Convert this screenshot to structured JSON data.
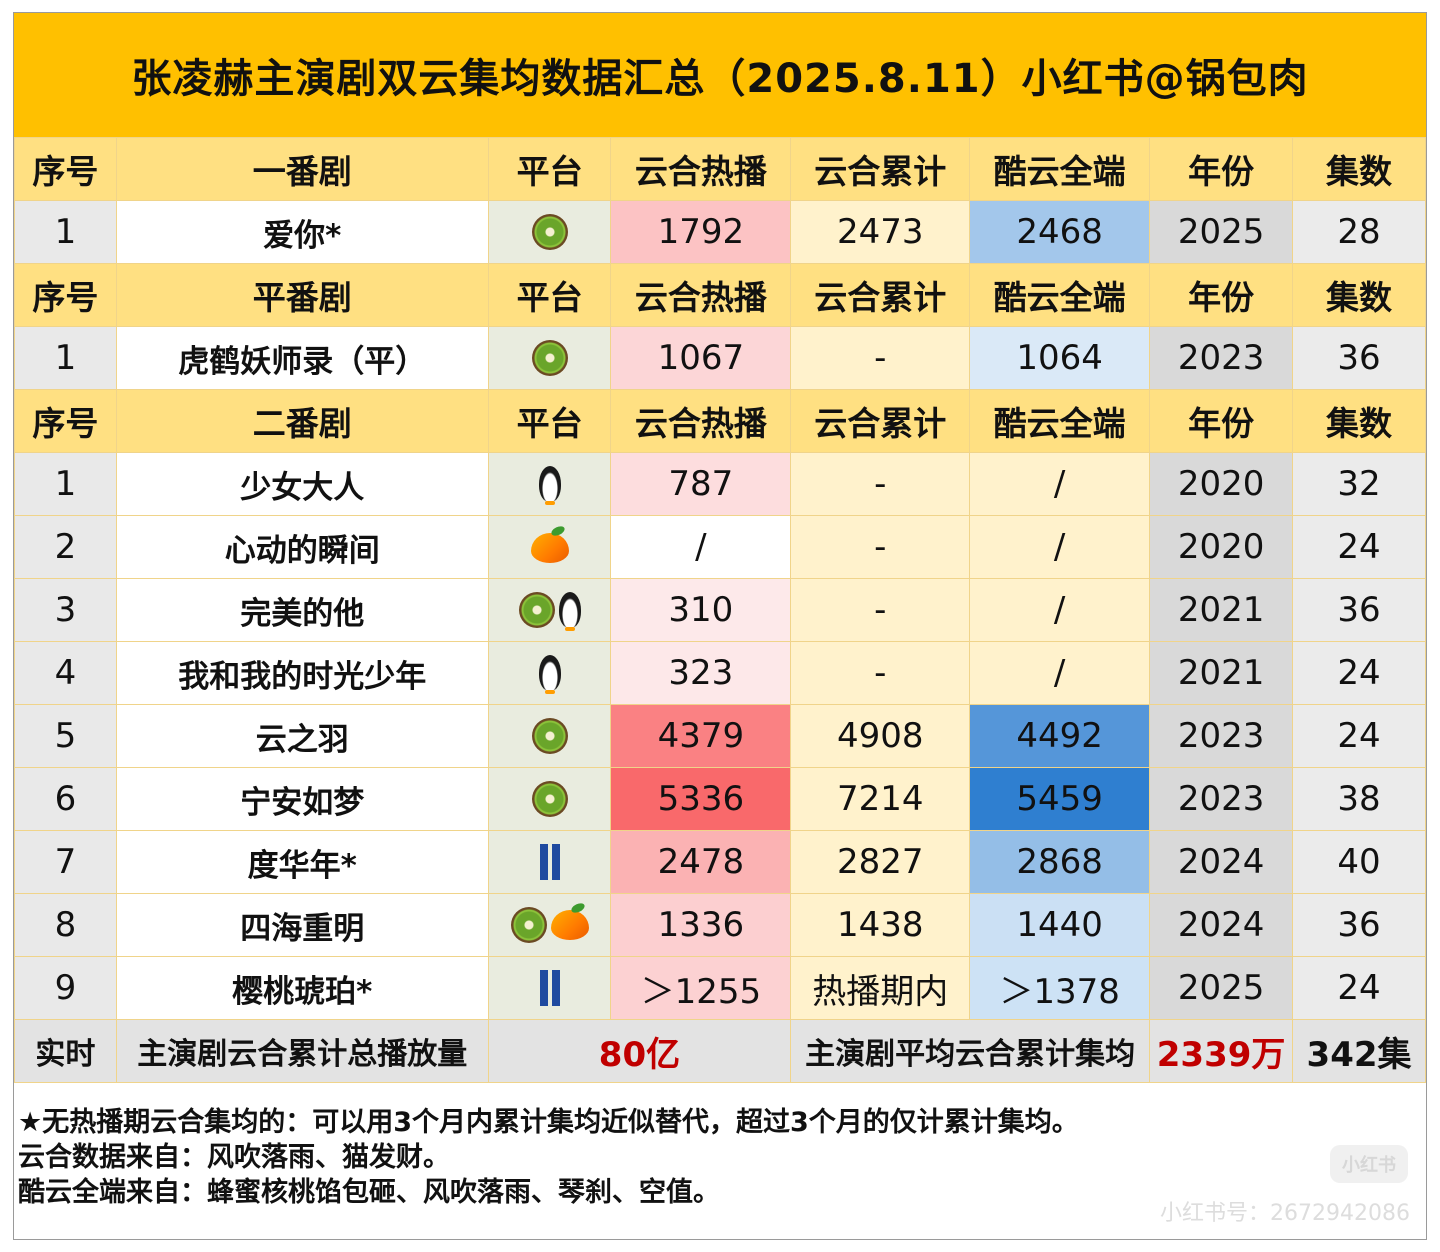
{
  "title": "张凌赫主演剧双云集均数据汇总（2025.8.11）小红书@锅包肉",
  "sections": [
    {
      "header": [
        "序号",
        "一番剧",
        "平台",
        "云合热播",
        "云合累计",
        "酷云全端",
        "年份",
        "集数"
      ],
      "rows": [
        {
          "idx": "1",
          "name": "爱你*",
          "platform": [
            "kiwi-icon"
          ],
          "hot": "1792",
          "total": "2473",
          "kuyun": "2468",
          "year": "2025",
          "episodes": "28"
        }
      ]
    },
    {
      "header": [
        "序号",
        "平番剧",
        "平台",
        "云合热播",
        "云合累计",
        "酷云全端",
        "年份",
        "集数"
      ],
      "rows": [
        {
          "idx": "1",
          "name": "虎鹤妖师录（平）",
          "platform": [
            "kiwi-icon"
          ],
          "hot": "1067",
          "total": "-",
          "kuyun": "1064",
          "year": "2023",
          "episodes": "36"
        }
      ]
    },
    {
      "header": [
        "序号",
        "二番剧",
        "平台",
        "云合热播",
        "云合累计",
        "酷云全端",
        "年份",
        "集数"
      ],
      "rows": [
        {
          "idx": "1",
          "name": "少女大人",
          "platform": [
            "penguin-icon"
          ],
          "hot": "787",
          "total": "-",
          "kuyun": "/",
          "year": "2020",
          "episodes": "32"
        },
        {
          "idx": "2",
          "name": "心动的瞬间",
          "platform": [
            "mango-icon"
          ],
          "hot": "/",
          "total": "-",
          "kuyun": "/",
          "year": "2020",
          "episodes": "24"
        },
        {
          "idx": "3",
          "name": "完美的他",
          "platform": [
            "kiwi-icon",
            "penguin-icon"
          ],
          "hot": "310",
          "total": "-",
          "kuyun": "/",
          "year": "2021",
          "episodes": "36"
        },
        {
          "idx": "4",
          "name": "我和我的时光少年",
          "platform": [
            "penguin-icon"
          ],
          "hot": "323",
          "total": "-",
          "kuyun": "/",
          "year": "2021",
          "episodes": "24"
        },
        {
          "idx": "5",
          "name": "云之羽",
          "platform": [
            "kiwi-icon"
          ],
          "hot": "4379",
          "total": "4908",
          "kuyun": "4492",
          "year": "2023",
          "episodes": "24"
        },
        {
          "idx": "6",
          "name": "宁安如梦",
          "platform": [
            "kiwi-icon"
          ],
          "hot": "5336",
          "total": "7214",
          "kuyun": "5459",
          "year": "2023",
          "episodes": "38"
        },
        {
          "idx": "7",
          "name": "度华年*",
          "platform": [
            "jeans-icon"
          ],
          "hot": "2478",
          "total": "2827",
          "kuyun": "2868",
          "year": "2024",
          "episodes": "40"
        },
        {
          "idx": "8",
          "name": "四海重明",
          "platform": [
            "kiwi-icon",
            "mango-icon"
          ],
          "hot": "1336",
          "total": "1438",
          "kuyun": "1440",
          "year": "2024",
          "episodes": "36"
        },
        {
          "idx": "9",
          "name": "樱桃琥珀*",
          "platform": [
            "jeans-icon"
          ],
          "hot": "＞1255",
          "total": "热播期内",
          "kuyun": "＞1378",
          "year": "2025",
          "episodes": "24"
        }
      ]
    }
  ],
  "summary": {
    "label": "实时",
    "total_label": "主演剧云合累计总播放量",
    "total_value": "80亿",
    "avg_label": "主演剧平均云合累计集均",
    "avg_value": "2339万",
    "episodes_total": "342集"
  },
  "notes": [
    "★无热播期云合集均的：可以用3个月内累计集均近似替代，超过3个月的仅计累计集均。",
    "云合数据来自：风吹落雨、猫发财。",
    "酷云全端来自：蜂蜜核桃馅包砸、风吹落雨、琴刹、空值。"
  ],
  "watermark": {
    "logo": "小红书",
    "id": "小红书号：2672942086"
  },
  "colors": {
    "title_bg": "#ffc000",
    "header_bg": "#ffe082",
    "hot_scale": [
      "#ffffff",
      "#f9696b"
    ],
    "kuyun_scale": [
      "#ffffff",
      "#2f7fd0"
    ],
    "summary_red": "#c00000"
  }
}
